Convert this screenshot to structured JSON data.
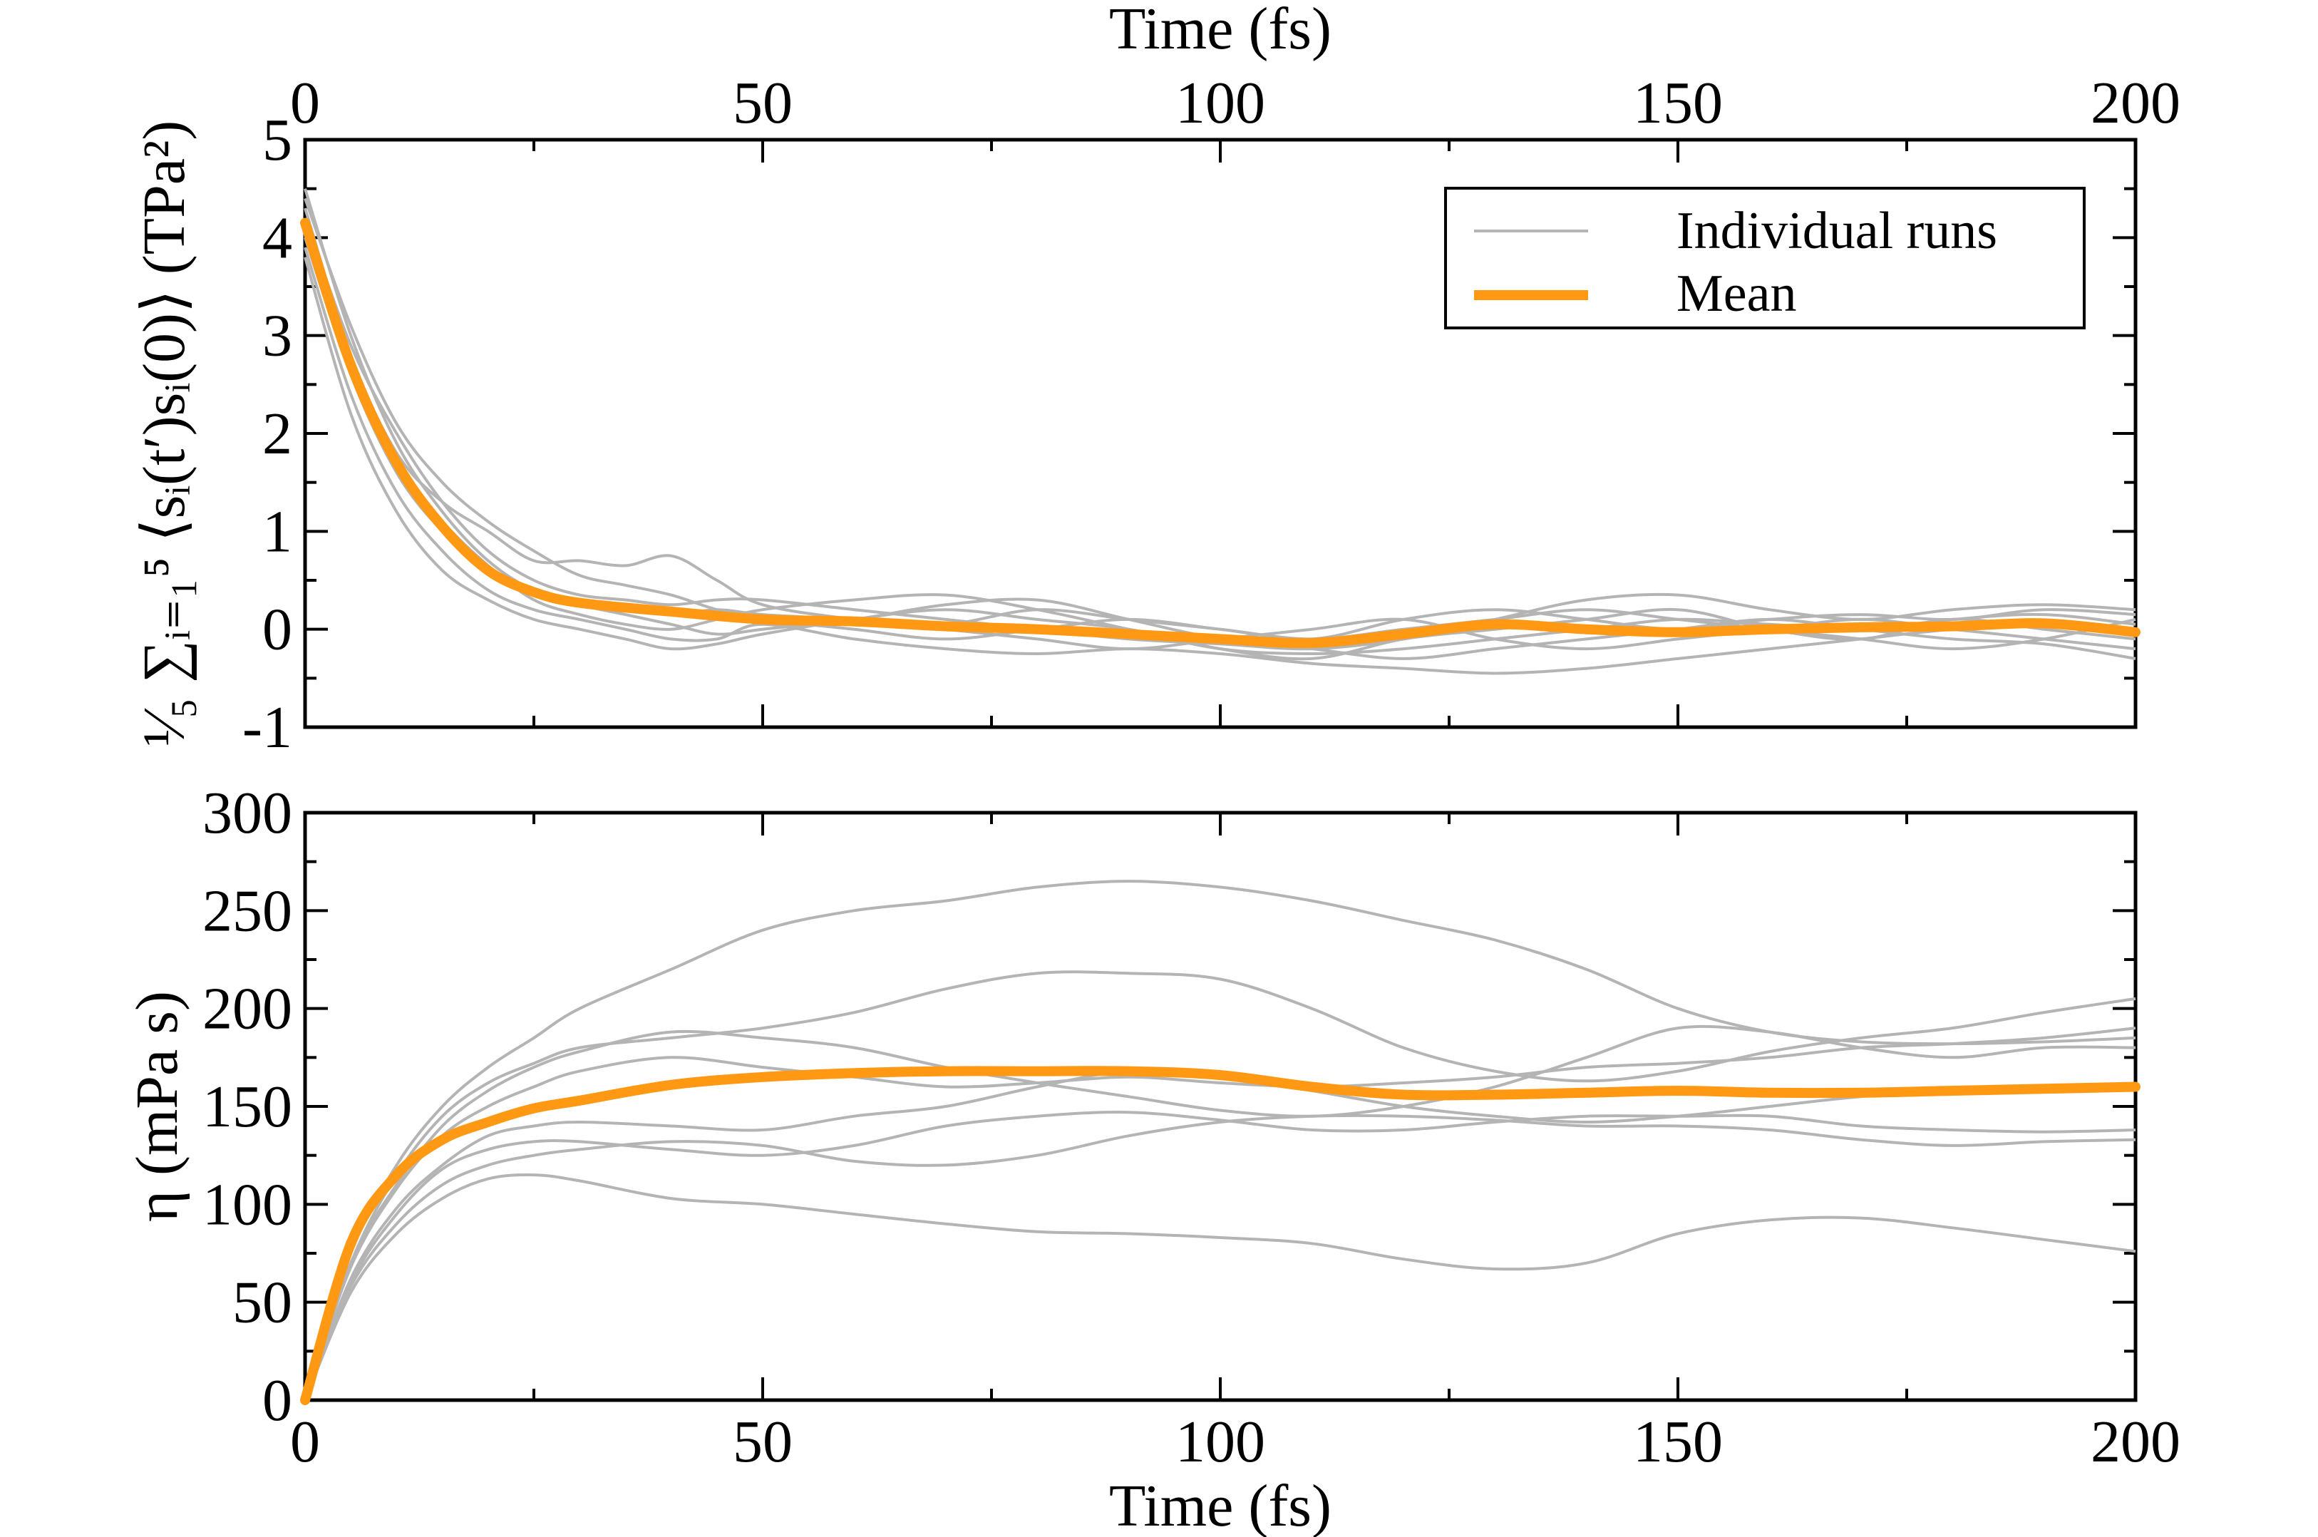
{
  "chart_data": [
    {
      "type": "line",
      "panel": "top",
      "ylabel": "¹⁄₅ ∑ᵢ₌₁⁵ ⟨sᵢ(t′)sᵢ(0)⟩ (TPa²)",
      "xlabel": "Time (fs)",
      "xlim": [
        0,
        200
      ],
      "ylim": [
        -1,
        5
      ],
      "x_ticks": [
        "0",
        "50",
        "100",
        "150",
        "200"
      ],
      "y_ticks": [
        "-1",
        "0",
        "1",
        "2",
        "3",
        "4",
        "5"
      ],
      "x_axis_position": "top",
      "grid": false,
      "legend": {
        "placement": "top-right",
        "entries": [
          {
            "label": "Individual runs",
            "color": "#b4b4b4"
          },
          {
            "label": "Mean",
            "color": "#ff9914"
          }
        ]
      },
      "runs": [
        {
          "x": [
            0,
            5,
            10,
            15,
            20,
            25,
            30,
            35,
            40,
            45,
            50,
            60,
            70,
            80,
            90,
            100,
            110,
            120,
            130,
            140,
            150,
            160,
            170,
            180,
            190,
            200
          ],
          "y": [
            4.5,
            3.0,
            1.9,
            1.2,
            0.7,
            0.4,
            0.3,
            0.2,
            0.15,
            0.2,
            0.15,
            0.1,
            0.05,
            0.2,
            0.1,
            0.0,
            -0.1,
            0.1,
            0.2,
            0.1,
            0.0,
            0.1,
            0.15,
            0.1,
            0.2,
            0.15
          ]
        },
        {
          "x": [
            0,
            5,
            10,
            15,
            20,
            25,
            30,
            35,
            40,
            45,
            50,
            60,
            70,
            80,
            90,
            100,
            110,
            120,
            130,
            140,
            150,
            160,
            170,
            180,
            190,
            200
          ],
          "y": [
            3.8,
            2.2,
            1.2,
            0.6,
            0.3,
            0.1,
            0.0,
            -0.1,
            -0.2,
            -0.15,
            -0.05,
            0.1,
            0.2,
            0.1,
            0.0,
            -0.2,
            -0.3,
            -0.1,
            0.0,
            0.1,
            0.2,
            0.0,
            -0.1,
            0.1,
            0.0,
            -0.1
          ]
        },
        {
          "x": [
            0,
            5,
            10,
            15,
            20,
            25,
            30,
            35,
            40,
            45,
            50,
            60,
            70,
            80,
            90,
            100,
            110,
            120,
            130,
            140,
            150,
            160,
            170,
            180,
            190,
            200
          ],
          "y": [
            4.3,
            2.8,
            1.8,
            1.3,
            1.0,
            0.7,
            0.7,
            0.65,
            0.75,
            0.5,
            0.25,
            0.1,
            0.0,
            -0.1,
            -0.2,
            -0.1,
            0.0,
            0.1,
            -0.1,
            -0.2,
            -0.1,
            0.0,
            0.1,
            0.0,
            -0.1,
            -0.2
          ]
        },
        {
          "x": [
            0,
            5,
            10,
            15,
            20,
            25,
            30,
            35,
            40,
            45,
            50,
            60,
            70,
            80,
            90,
            100,
            110,
            120,
            130,
            140,
            150,
            160,
            170,
            180,
            190,
            200
          ],
          "y": [
            4.0,
            2.6,
            1.6,
            1.0,
            0.6,
            0.4,
            0.25,
            0.15,
            0.05,
            -0.05,
            0.0,
            0.1,
            0.25,
            0.3,
            0.1,
            -0.1,
            -0.2,
            -0.3,
            -0.2,
            -0.1,
            0.0,
            0.1,
            0.0,
            -0.1,
            -0.15,
            -0.3
          ]
        },
        {
          "x": [
            0,
            5,
            10,
            15,
            20,
            25,
            30,
            35,
            40,
            45,
            50,
            60,
            70,
            80,
            90,
            100,
            110,
            120,
            130,
            140,
            150,
            160,
            170,
            180,
            190,
            200
          ],
          "y": [
            4.2,
            2.9,
            2.0,
            1.3,
            0.8,
            0.5,
            0.35,
            0.3,
            0.25,
            0.3,
            0.3,
            0.2,
            0.1,
            0.0,
            -0.1,
            -0.15,
            -0.2,
            -0.1,
            0.1,
            0.3,
            0.35,
            0.2,
            0.1,
            0.2,
            0.25,
            0.2
          ]
        },
        {
          "x": [
            0,
            5,
            10,
            15,
            20,
            25,
            30,
            35,
            40,
            45,
            50,
            60,
            70,
            80,
            90,
            100,
            110,
            120,
            130,
            140,
            150,
            160,
            170,
            180,
            190,
            200
          ],
          "y": [
            3.9,
            2.4,
            1.4,
            0.8,
            0.4,
            0.2,
            0.1,
            0.0,
            -0.1,
            -0.1,
            0.05,
            -0.1,
            -0.2,
            -0.25,
            -0.2,
            -0.25,
            -0.35,
            -0.4,
            -0.45,
            -0.4,
            -0.3,
            -0.2,
            -0.1,
            0.0,
            0.05,
            0.0
          ]
        },
        {
          "x": [
            0,
            5,
            10,
            15,
            20,
            25,
            30,
            35,
            40,
            45,
            50,
            60,
            70,
            80,
            90,
            100,
            110,
            120,
            130,
            140,
            150,
            160,
            170,
            180,
            190,
            200
          ],
          "y": [
            4.4,
            3.1,
            2.1,
            1.5,
            1.1,
            0.8,
            0.55,
            0.45,
            0.35,
            0.2,
            0.1,
            0.0,
            -0.1,
            0.0,
            0.1,
            0.0,
            -0.1,
            0.0,
            0.1,
            0.2,
            0.1,
            0.0,
            -0.1,
            -0.2,
            -0.1,
            0.1
          ]
        },
        {
          "x": [
            0,
            5,
            10,
            15,
            20,
            25,
            30,
            35,
            40,
            45,
            50,
            60,
            70,
            80,
            90,
            100,
            110,
            120,
            130,
            140,
            150,
            160,
            170,
            180,
            190,
            200
          ],
          "y": [
            4.1,
            2.7,
            1.7,
            1.1,
            0.65,
            0.3,
            0.15,
            0.05,
            0.0,
            0.1,
            0.2,
            0.3,
            0.35,
            0.2,
            0.0,
            -0.2,
            -0.25,
            -0.2,
            -0.1,
            0.0,
            0.1,
            0.05,
            0.0,
            0.1,
            0.15,
            0.05
          ]
        }
      ],
      "mean": {
        "x": [
          0,
          5,
          10,
          15,
          20,
          25,
          30,
          40,
          50,
          60,
          70,
          80,
          90,
          100,
          110,
          120,
          130,
          140,
          150,
          160,
          170,
          180,
          190,
          200
        ],
        "y": [
          4.15,
          2.7,
          1.7,
          1.05,
          0.6,
          0.38,
          0.27,
          0.18,
          0.1,
          0.08,
          0.03,
          0.0,
          -0.05,
          -0.1,
          -0.14,
          -0.05,
          0.05,
          0.0,
          -0.03,
          0.0,
          0.02,
          0.03,
          0.06,
          -0.03
        ]
      }
    },
    {
      "type": "line",
      "panel": "bottom",
      "xlabel": "Time (fs)",
      "ylabel": "η (mPa s)",
      "xlim": [
        0,
        200
      ],
      "ylim": [
        0,
        300
      ],
      "x_ticks": [
        "0",
        "50",
        "100",
        "150",
        "200"
      ],
      "y_ticks": [
        "0",
        "50",
        "100",
        "150",
        "200",
        "250",
        "300"
      ],
      "grid": false,
      "runs": [
        {
          "x": [
            0,
            5,
            10,
            15,
            20,
            25,
            30,
            40,
            50,
            60,
            70,
            80,
            90,
            100,
            110,
            120,
            130,
            140,
            150,
            160,
            170,
            180,
            190,
            200
          ],
          "y": [
            0,
            75,
            120,
            150,
            170,
            185,
            200,
            220,
            240,
            250,
            255,
            262,
            265,
            262,
            255,
            245,
            235,
            220,
            200,
            188,
            183,
            182,
            183,
            185
          ]
        },
        {
          "x": [
            0,
            5,
            10,
            15,
            20,
            25,
            30,
            40,
            50,
            60,
            70,
            80,
            90,
            100,
            110,
            120,
            130,
            140,
            150,
            160,
            170,
            180,
            190,
            200
          ],
          "y": [
            0,
            70,
            115,
            145,
            162,
            172,
            180,
            185,
            190,
            198,
            210,
            218,
            218,
            215,
            200,
            180,
            168,
            163,
            168,
            178,
            185,
            190,
            198,
            205
          ]
        },
        {
          "x": [
            0,
            5,
            10,
            15,
            20,
            25,
            30,
            40,
            50,
            60,
            70,
            80,
            90,
            100,
            110,
            120,
            130,
            140,
            150,
            160,
            170,
            180,
            190,
            200
          ],
          "y": [
            0,
            70,
            110,
            140,
            158,
            170,
            178,
            188,
            185,
            180,
            170,
            162,
            155,
            148,
            145,
            150,
            160,
            175,
            190,
            188,
            180,
            175,
            180,
            180
          ]
        },
        {
          "x": [
            0,
            5,
            10,
            15,
            20,
            25,
            30,
            40,
            50,
            60,
            70,
            80,
            90,
            100,
            110,
            120,
            130,
            140,
            150,
            160,
            170,
            180,
            190,
            200
          ],
          "y": [
            0,
            68,
            108,
            135,
            150,
            160,
            168,
            175,
            170,
            165,
            160,
            162,
            165,
            162,
            160,
            162,
            165,
            170,
            172,
            175,
            180,
            182,
            185,
            190
          ]
        },
        {
          "x": [
            0,
            5,
            10,
            15,
            20,
            25,
            30,
            40,
            50,
            60,
            70,
            80,
            90,
            100,
            110,
            120,
            130,
            140,
            150,
            160,
            170,
            180,
            190,
            200
          ],
          "y": [
            0,
            62,
            98,
            120,
            135,
            140,
            142,
            140,
            138,
            145,
            150,
            160,
            168,
            165,
            158,
            150,
            145,
            142,
            145,
            150,
            155,
            158,
            160,
            160
          ]
        },
        {
          "x": [
            0,
            5,
            10,
            15,
            20,
            25,
            30,
            40,
            50,
            60,
            70,
            80,
            90,
            100,
            110,
            120,
            130,
            140,
            150,
            160,
            170,
            180,
            190,
            200
          ],
          "y": [
            0,
            60,
            95,
            118,
            128,
            132,
            132,
            128,
            125,
            130,
            140,
            145,
            147,
            143,
            138,
            138,
            142,
            145,
            145,
            145,
            140,
            138,
            137,
            138
          ]
        },
        {
          "x": [
            0,
            5,
            10,
            15,
            20,
            25,
            30,
            40,
            50,
            60,
            70,
            80,
            90,
            100,
            110,
            120,
            130,
            140,
            150,
            160,
            170,
            180,
            190,
            200
          ],
          "y": [
            0,
            58,
            90,
            110,
            120,
            125,
            128,
            132,
            130,
            122,
            120,
            125,
            135,
            142,
            145,
            145,
            143,
            140,
            140,
            138,
            133,
            130,
            132,
            133
          ]
        },
        {
          "x": [
            0,
            5,
            10,
            15,
            20,
            25,
            30,
            40,
            50,
            60,
            70,
            80,
            90,
            100,
            110,
            120,
            130,
            140,
            150,
            160,
            170,
            180,
            190,
            200
          ],
          "y": [
            0,
            55,
            85,
            103,
            113,
            115,
            112,
            103,
            100,
            95,
            90,
            86,
            85,
            83,
            80,
            72,
            67,
            70,
            85,
            92,
            93,
            88,
            82,
            76
          ]
        }
      ],
      "mean": {
        "x": [
          0,
          5,
          10,
          15,
          20,
          25,
          30,
          40,
          50,
          60,
          70,
          80,
          90,
          100,
          110,
          120,
          130,
          140,
          150,
          160,
          170,
          180,
          190,
          200
        ],
        "y": [
          0,
          80,
          115,
          133,
          142,
          149,
          153,
          161,
          165,
          167,
          168,
          168,
          168,
          166,
          160,
          156,
          156,
          157,
          158,
          157,
          157,
          158,
          159,
          160
        ]
      }
    }
  ]
}
